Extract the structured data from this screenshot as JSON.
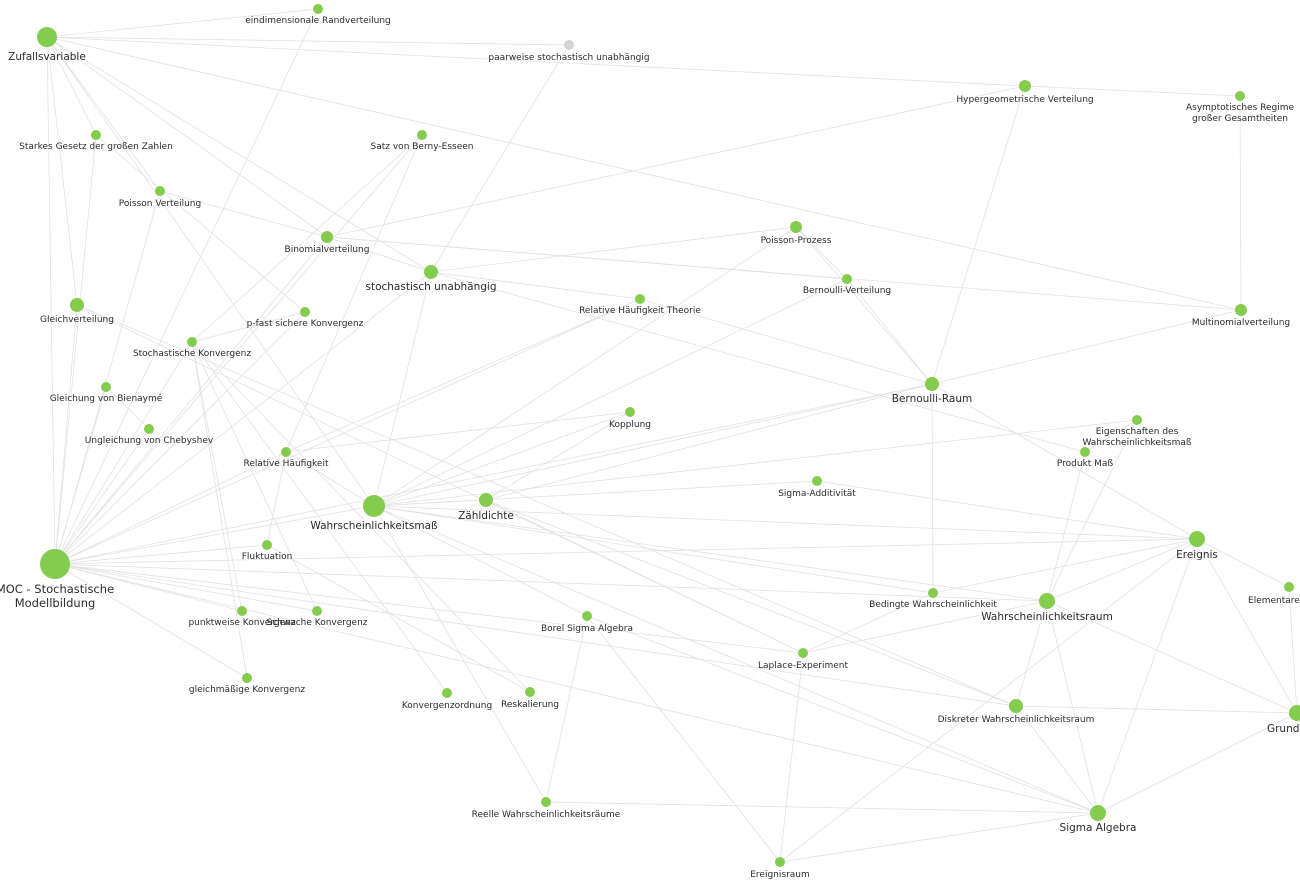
{
  "nodes": [
    {
      "label": "Zufallsvariable"
    },
    {
      "label": "eindimensionale Randverteilung"
    },
    {
      "label": "paarweise stochastisch unabhängig"
    },
    {
      "label": "Hypergeometrische Verteilung"
    },
    {
      "label": "Asymptotisches Regime großer Gesamtheiten"
    },
    {
      "label": "Starkes Gesetz der großen Zahlen"
    },
    {
      "label": "Satz von Berny-Esseen"
    },
    {
      "label": "Poisson Verteilung"
    },
    {
      "label": "Binomialverteilung"
    },
    {
      "label": "Poisson-Prozess"
    },
    {
      "label": "stochastisch unabhängig"
    },
    {
      "label": "Bernoulli-Verteilung"
    },
    {
      "label": "Gleichverteilung"
    },
    {
      "label": "p-fast sichere Konvergenz"
    },
    {
      "label": "Relative Häufigkeit Theorie"
    },
    {
      "label": "Multinomialverteilung"
    },
    {
      "label": "Stochastische Konvergenz"
    },
    {
      "label": "Bernoulli-Raum"
    },
    {
      "label": "Gleichung von Bienaymé"
    },
    {
      "label": "Kopplung"
    },
    {
      "label": "Eigenschaften des Wahrscheinlichkeitsmaß"
    },
    {
      "label": "Ungleichung von Chebyshev"
    },
    {
      "label": "Relative Häufigkeit"
    },
    {
      "label": "Produkt Maß"
    },
    {
      "label": "Sigma-Additivität"
    },
    {
      "label": "Wahrscheinlichkeitsmaß"
    },
    {
      "label": "Zähldichte"
    },
    {
      "label": "Ereignis"
    },
    {
      "label": "Fluktuation"
    },
    {
      "label": "MOC - Stochastische Modellbildung"
    },
    {
      "label": "Elementarereignis"
    },
    {
      "label": "Bedingte Wahrscheinlichkeit"
    },
    {
      "label": "Wahrscheinlichkeitsraum"
    },
    {
      "label": "punktweise Konvergenz"
    },
    {
      "label": "Schwache Konvergenz"
    },
    {
      "label": "Borel Sigma Algebra"
    },
    {
      "label": "Laplace-Experiment"
    },
    {
      "label": "gleichmäßige Konvergenz"
    },
    {
      "label": "Konvergenzordnung"
    },
    {
      "label": "Reskalierung"
    },
    {
      "label": "Diskreter Wahrscheinlichkeitsraum"
    },
    {
      "label": "Grundraum"
    },
    {
      "label": "Reelle Wahrscheinlichkeitsräume"
    },
    {
      "label": "Sigma Algebra"
    },
    {
      "label": "Ereignisraum"
    }
  ]
}
